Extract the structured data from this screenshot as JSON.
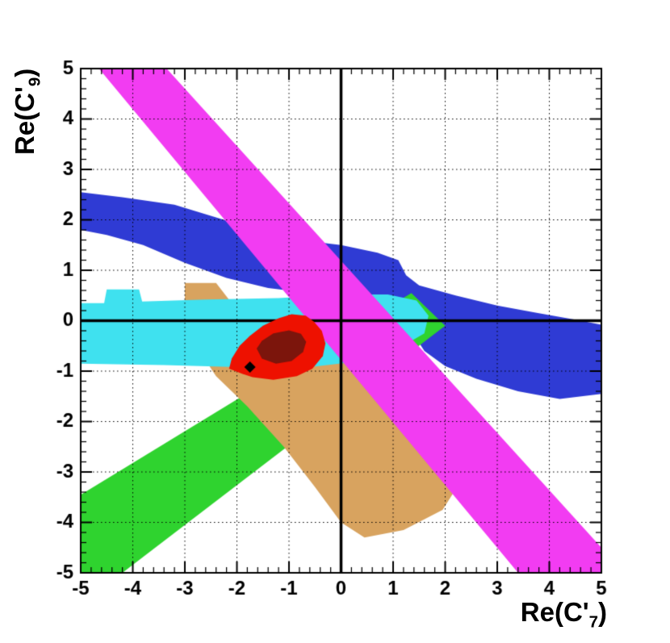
{
  "chart_data": {
    "type": "area",
    "title": "",
    "xlabel": "Re(C'_7)",
    "ylabel": "Re(C'_9)",
    "xlabel_parts": {
      "pre": "Re(C'",
      "sub": "7",
      "post": ")"
    },
    "ylabel_parts": {
      "pre": "Re(C'",
      "sub": "9",
      "post": ")"
    },
    "xlim": [
      -5,
      5
    ],
    "ylim": [
      -5,
      5
    ],
    "x_ticks": [
      -5,
      -4,
      -3,
      -2,
      -1,
      0,
      1,
      2,
      3,
      4,
      5
    ],
    "y_ticks": [
      -5,
      -4,
      -3,
      -2,
      -1,
      0,
      1,
      2,
      3,
      4,
      5
    ],
    "minor_tick_step": 0.2,
    "grid": true,
    "grid_style": "dotted",
    "zero_lines": true,
    "frame_color": "#000000",
    "regions": [
      {
        "name": "blue-band",
        "color": "#2f3bd4",
        "points": [
          [
            -5,
            2.55
          ],
          [
            -4.2,
            2.45
          ],
          [
            -3.2,
            2.3
          ],
          [
            -2.4,
            2.05
          ],
          [
            -1.6,
            1.8
          ],
          [
            -0.8,
            1.6
          ],
          [
            0,
            1.5
          ],
          [
            0.7,
            1.35
          ],
          [
            1.1,
            1.2
          ],
          [
            1.25,
            0.9
          ],
          [
            1.5,
            0.7
          ],
          [
            2.2,
            0.5
          ],
          [
            3,
            0.3
          ],
          [
            3.8,
            0.15
          ],
          [
            4.5,
            0.02
          ],
          [
            5,
            -0.08
          ],
          [
            5,
            -1.45
          ],
          [
            4.2,
            -1.55
          ],
          [
            3.4,
            -1.4
          ],
          [
            2.6,
            -1.15
          ],
          [
            2.0,
            -0.9
          ],
          [
            1.6,
            -0.6
          ],
          [
            1.35,
            -0.2
          ],
          [
            1.2,
            0.15
          ],
          [
            0.8,
            0.35
          ],
          [
            0.2,
            0.45
          ],
          [
            -0.6,
            0.55
          ],
          [
            -1.4,
            0.65
          ],
          [
            -2.2,
            0.85
          ],
          [
            -3.0,
            1.15
          ],
          [
            -3.8,
            1.5
          ],
          [
            -4.5,
            1.7
          ],
          [
            -5,
            1.8
          ]
        ]
      },
      {
        "name": "green-band",
        "color": "#2fd32f",
        "points": [
          [
            -5,
            -3.45
          ],
          [
            1.35,
            0.55
          ],
          [
            2.0,
            -0.1
          ],
          [
            -4.2,
            -5
          ],
          [
            -5,
            -5
          ]
        ]
      },
      {
        "name": "tan-region",
        "color": "#d8a35f",
        "points": [
          [
            -3.0,
            0.75
          ],
          [
            -2.4,
            0.75
          ],
          [
            -2.1,
            0.35
          ],
          [
            -1.0,
            -0.1
          ],
          [
            0.2,
            -0.45
          ],
          [
            1.2,
            -0.9
          ],
          [
            2.0,
            -1.5
          ],
          [
            2.35,
            -2.2
          ],
          [
            2.35,
            -3.1
          ],
          [
            1.95,
            -3.75
          ],
          [
            1.2,
            -4.15
          ],
          [
            0.45,
            -4.3
          ],
          [
            0.0,
            -4.0
          ],
          [
            -0.5,
            -3.3
          ],
          [
            -1.1,
            -2.5
          ],
          [
            -1.8,
            -1.7
          ],
          [
            -2.4,
            -1.1
          ],
          [
            -2.85,
            -0.4
          ],
          [
            -3.0,
            0.0
          ]
        ]
      },
      {
        "name": "cyan-band",
        "color": "#3fe1ef",
        "points": [
          [
            -5,
            0.35
          ],
          [
            -4.55,
            0.35
          ],
          [
            -4.5,
            0.62
          ],
          [
            -3.88,
            0.62
          ],
          [
            -3.82,
            0.38
          ],
          [
            -2.6,
            0.42
          ],
          [
            -1.2,
            0.45
          ],
          [
            0.0,
            0.52
          ],
          [
            0.9,
            0.52
          ],
          [
            1.45,
            0.4
          ],
          [
            1.68,
            0.1
          ],
          [
            1.6,
            -0.25
          ],
          [
            1.1,
            -0.55
          ],
          [
            0.4,
            -0.8
          ],
          [
            -0.6,
            -0.92
          ],
          [
            -2.0,
            -0.92
          ],
          [
            -3.4,
            -0.88
          ],
          [
            -5,
            -0.85
          ]
        ]
      },
      {
        "name": "magenta-band",
        "color": "#f23cf2",
        "points": [
          [
            -4.65,
            5
          ],
          [
            -3.35,
            5
          ],
          [
            5,
            -4.5
          ],
          [
            5,
            -5
          ],
          [
            3.4,
            -5
          ]
        ]
      },
      {
        "name": "red-region",
        "color": "#ee1100",
        "points": [
          [
            -2.1,
            -0.75
          ],
          [
            -2.15,
            -0.95
          ],
          [
            -1.9,
            -1.05
          ],
          [
            -1.7,
            -1.12
          ],
          [
            -1.3,
            -1.17
          ],
          [
            -0.85,
            -1.1
          ],
          [
            -0.55,
            -0.95
          ],
          [
            -0.35,
            -0.7
          ],
          [
            -0.3,
            -0.45
          ],
          [
            -0.37,
            -0.2
          ],
          [
            -0.52,
            -0.02
          ],
          [
            -0.68,
            0.1
          ],
          [
            -0.95,
            0.13
          ],
          [
            -1.2,
            0.05
          ],
          [
            -1.5,
            -0.1
          ],
          [
            -1.75,
            -0.3
          ],
          [
            -1.95,
            -0.5
          ]
        ]
      },
      {
        "name": "dark-red-region",
        "color": "#7c150c",
        "points": [
          [
            -1.62,
            -0.55
          ],
          [
            -1.52,
            -0.75
          ],
          [
            -1.25,
            -0.85
          ],
          [
            -0.95,
            -0.8
          ],
          [
            -0.73,
            -0.62
          ],
          [
            -0.67,
            -0.42
          ],
          [
            -0.77,
            -0.26
          ],
          [
            -1.0,
            -0.19
          ],
          [
            -1.3,
            -0.25
          ],
          [
            -1.52,
            -0.4
          ]
        ]
      }
    ],
    "best_fit_marker": {
      "x": -1.75,
      "y": -0.92,
      "shape": "diamond",
      "color": "#000000"
    }
  }
}
